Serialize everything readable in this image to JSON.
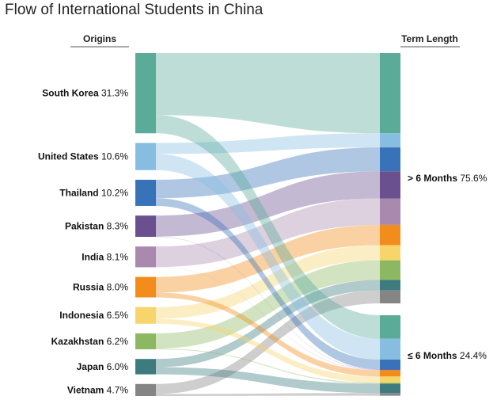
{
  "title": "Flow of International Students in China",
  "left_header": "Origins",
  "right_header": "Term Length",
  "chart_data": {
    "type": "sankey",
    "sources": [
      {
        "name": "South Korea",
        "share": "31.3%",
        "value": 31.3,
        "color": "#5aab98"
      },
      {
        "name": "United States",
        "share": "10.6%",
        "value": 10.6,
        "color": "#86bde0"
      },
      {
        "name": "Thailand",
        "share": "10.2%",
        "value": 10.2,
        "color": "#3873b9"
      },
      {
        "name": "Pakistan",
        "share": "8.3%",
        "value": 8.3,
        "color": "#6b5090"
      },
      {
        "name": "India",
        "share": "8.1%",
        "value": 8.1,
        "color": "#a98aae"
      },
      {
        "name": "Russia",
        "share": "8.0%",
        "value": 8.0,
        "color": "#f28c1a"
      },
      {
        "name": "Indonesia",
        "share": "6.5%",
        "value": 6.5,
        "color": "#f7d56b"
      },
      {
        "name": "Kazakhstan",
        "share": "6.2%",
        "value": 6.2,
        "color": "#8db862"
      },
      {
        "name": "Japan",
        "share": "6.0%",
        "value": 6.0,
        "color": "#3d7b7e"
      },
      {
        "name": "Vietnam",
        "share": "4.7%",
        "value": 4.7,
        "color": "#858585"
      }
    ],
    "targets": [
      {
        "name": "> 6 Months",
        "share": "75.6%",
        "value": 75.6
      },
      {
        "name": "≤ 6 Months",
        "share": "24.4%",
        "value": 24.4
      }
    ],
    "flows": [
      {
        "source": "South Korea",
        "target": "> 6 Months",
        "value": 24.2
      },
      {
        "source": "South Korea",
        "target": "≤ 6 Months",
        "value": 7.1
      },
      {
        "source": "United States",
        "target": "> 6 Months",
        "value": 4.3
      },
      {
        "source": "United States",
        "target": "≤ 6 Months",
        "value": 6.3
      },
      {
        "source": "Thailand",
        "target": "> 6 Months",
        "value": 7.2
      },
      {
        "source": "Thailand",
        "target": "≤ 6 Months",
        "value": 3.0
      },
      {
        "source": "Pakistan",
        "target": "> 6 Months",
        "value": 8.2
      },
      {
        "source": "Pakistan",
        "target": "≤ 6 Months",
        "value": 0.1
      },
      {
        "source": "India",
        "target": "> 6 Months",
        "value": 8.0
      },
      {
        "source": "India",
        "target": "≤ 6 Months",
        "value": 0.1
      },
      {
        "source": "Russia",
        "target": "> 6 Months",
        "value": 6.1
      },
      {
        "source": "Russia",
        "target": "≤ 6 Months",
        "value": 1.9
      },
      {
        "source": "Indonesia",
        "target": "> 6 Months",
        "value": 4.6
      },
      {
        "source": "Indonesia",
        "target": "≤ 6 Months",
        "value": 1.9
      },
      {
        "source": "Kazakhstan",
        "target": "> 6 Months",
        "value": 5.9
      },
      {
        "source": "Kazakhstan",
        "target": "≤ 6 Months",
        "value": 0.3
      },
      {
        "source": "Japan",
        "target": "> 6 Months",
        "value": 3.2
      },
      {
        "source": "Japan",
        "target": "≤ 6 Months",
        "value": 2.8
      },
      {
        "source": "Vietnam",
        "target": "> 6 Months",
        "value": 3.9
      },
      {
        "source": "Vietnam",
        "target": "≤ 6 Months",
        "value": 0.8
      }
    ]
  }
}
